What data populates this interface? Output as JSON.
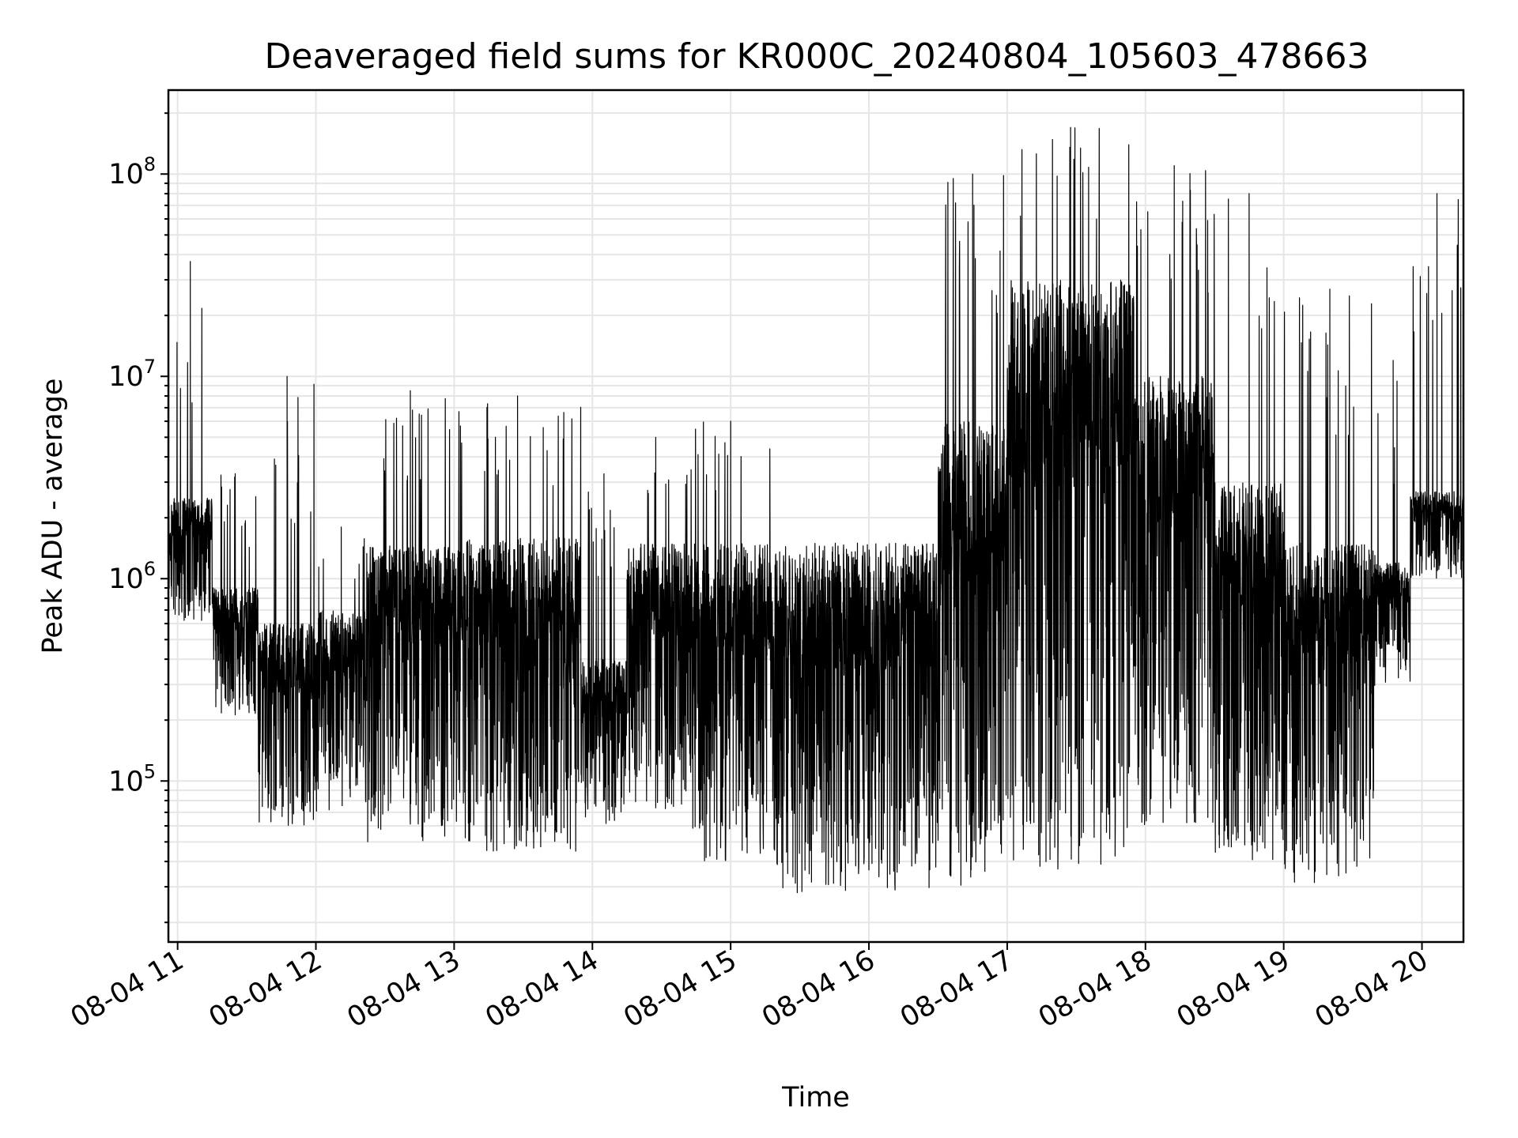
{
  "chart_data": {
    "type": "line",
    "title": "Deaveraged field sums for KR000C_20240804_105603_478663",
    "xlabel": "Time",
    "ylabel": "Peak ADU - average",
    "yscale": "log",
    "xlim": [
      "2024-08-04 10:56",
      "2024-08-04 20:18"
    ],
    "ylim": [
      16000,
      260000000
    ],
    "grid": true,
    "x_ticks": [
      "08-04 11",
      "08-04 12",
      "08-04 13",
      "08-04 14",
      "08-04 15",
      "08-04 16",
      "08-04 17",
      "08-04 18",
      "08-04 19",
      "08-04 20"
    ],
    "y_ticks": [
      {
        "value": 100000,
        "base": "10",
        "exp": "5"
      },
      {
        "value": 1000000,
        "base": "10",
        "exp": "6"
      },
      {
        "value": 10000000,
        "base": "10",
        "exp": "7"
      },
      {
        "value": 100000000,
        "base": "10",
        "exp": "8"
      }
    ],
    "series": [
      {
        "color": "#000000",
        "segments": [
          {
            "start": "10:56",
            "end": "11:15",
            "low": 600000,
            "high": 2500000,
            "spike_max": 37000000
          },
          {
            "start": "11:15",
            "end": "11:35",
            "low": 200000,
            "high": 900000,
            "spike_max": 3300000
          },
          {
            "start": "11:35",
            "end": "12:00",
            "low": 60000,
            "high": 600000,
            "spike_max": 10000000
          },
          {
            "start": "12:00",
            "end": "12:22",
            "low": 70000,
            "high": 700000,
            "spike_max": 1800000
          },
          {
            "start": "12:22",
            "end": "13:00",
            "low": 50000,
            "high": 1500000,
            "spike_max": 8500000
          },
          {
            "start": "13:00",
            "end": "13:55",
            "low": 45000,
            "high": 1600000,
            "spike_max": 8000000
          },
          {
            "start": "13:55",
            "end": "14:15",
            "low": 60000,
            "high": 400000,
            "spike_max": 3300000
          },
          {
            "start": "14:15",
            "end": "14:40",
            "low": 70000,
            "high": 1500000,
            "spike_max": 5000000
          },
          {
            "start": "14:40",
            "end": "15:20",
            "low": 40000,
            "high": 1500000,
            "spike_max": 6000000
          },
          {
            "start": "15:20",
            "end": "16:30",
            "low": 28000,
            "high": 1400000,
            "spike_max": 1500000
          },
          {
            "start": "16:30",
            "end": "17:00",
            "low": 30000,
            "high": 6000000,
            "spike_max": 100000000
          },
          {
            "start": "17:00",
            "end": "17:55",
            "low": 35000,
            "high": 30000000,
            "spike_max": 170000000
          },
          {
            "start": "17:55",
            "end": "18:30",
            "low": 60000,
            "high": 10000000,
            "spike_max": 110000000
          },
          {
            "start": "18:30",
            "end": "19:00",
            "low": 40000,
            "high": 3000000,
            "spike_max": 80000000
          },
          {
            "start": "19:00",
            "end": "19:40",
            "low": 30000,
            "high": 1500000,
            "spike_max": 27000000
          },
          {
            "start": "19:40",
            "end": "19:55",
            "low": 300000,
            "high": 1200000,
            "spike_max": 12000000
          },
          {
            "start": "19:55",
            "end": "20:18",
            "low": 1000000,
            "high": 2700000,
            "spike_max": 80000000
          }
        ]
      }
    ]
  }
}
